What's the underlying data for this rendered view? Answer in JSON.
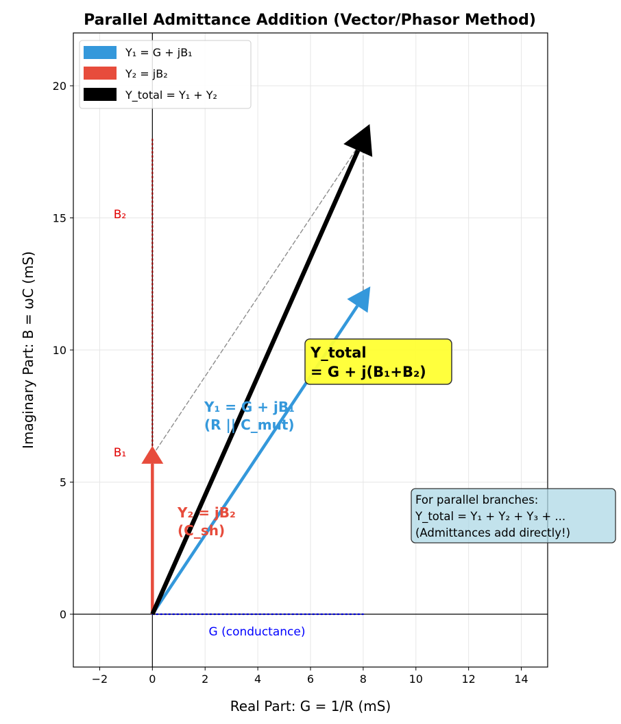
{
  "chart_data": {
    "type": "vector",
    "title": "Parallel Admittance Addition (Vector/Phasor Method)",
    "xlabel": "Real Part: G = 1/R (mS)",
    "ylabel": "Imaginary Part: B = ωC (mS)",
    "xlim": [
      -3,
      15
    ],
    "ylim": [
      -2,
      22
    ],
    "xticks": [
      -2,
      0,
      2,
      4,
      6,
      8,
      10,
      12,
      14
    ],
    "yticks": [
      0,
      5,
      10,
      15,
      20
    ],
    "grid": true,
    "legend_position": "top-left",
    "vectors": [
      {
        "name": "Y₁ = G + jB₁",
        "from": [
          0,
          0
        ],
        "to": [
          8,
          12
        ],
        "color": "#3498db"
      },
      {
        "name": "Y₂ = jB₂",
        "from": [
          0,
          0
        ],
        "to": [
          0,
          6
        ],
        "color": "#e74c3c"
      },
      {
        "name": "Y_total = Y₁ + Y₂",
        "from": [
          0,
          0
        ],
        "to": [
          8,
          18
        ],
        "color": "#000000"
      }
    ],
    "guide_lines": [
      {
        "from": [
          0,
          6
        ],
        "to": [
          8,
          18
        ],
        "style": "dashed",
        "color": "#8c8c8c"
      },
      {
        "from": [
          8,
          12
        ],
        "to": [
          8,
          18
        ],
        "style": "dashed",
        "color": "#8c8c8c"
      },
      {
        "from": [
          0,
          0
        ],
        "to": [
          0,
          18
        ],
        "style": "dotted",
        "color": "#8b0000"
      },
      {
        "from": [
          0,
          0
        ],
        "to": [
          8,
          0
        ],
        "style": "dotted",
        "color": "#0000cd"
      }
    ],
    "annotations": {
      "y1_label": [
        "Y₁ = G + jB₁",
        "(R || C_mut)"
      ],
      "y2_label": [
        "Y₂ = jB₂",
        "(C_sh)"
      ],
      "ytotal_label": [
        "Y_total",
        "= G + j(B₁+B₂)"
      ],
      "b1_label": "B₁",
      "b2_label": "B₂",
      "g_label": "G (conductance)",
      "note": [
        "For parallel branches:",
        "Y_total = Y₁ + Y₂ + Y₃ + ...",
        "(Admittances add directly!)"
      ]
    },
    "colors": {
      "y1": "#3498db",
      "y2": "#e74c3c",
      "total": "#000000",
      "highlight_box": "#ffff33",
      "note_box": "#add8e6",
      "b_labels": "#e00000",
      "g_label": "#0000ff"
    }
  }
}
